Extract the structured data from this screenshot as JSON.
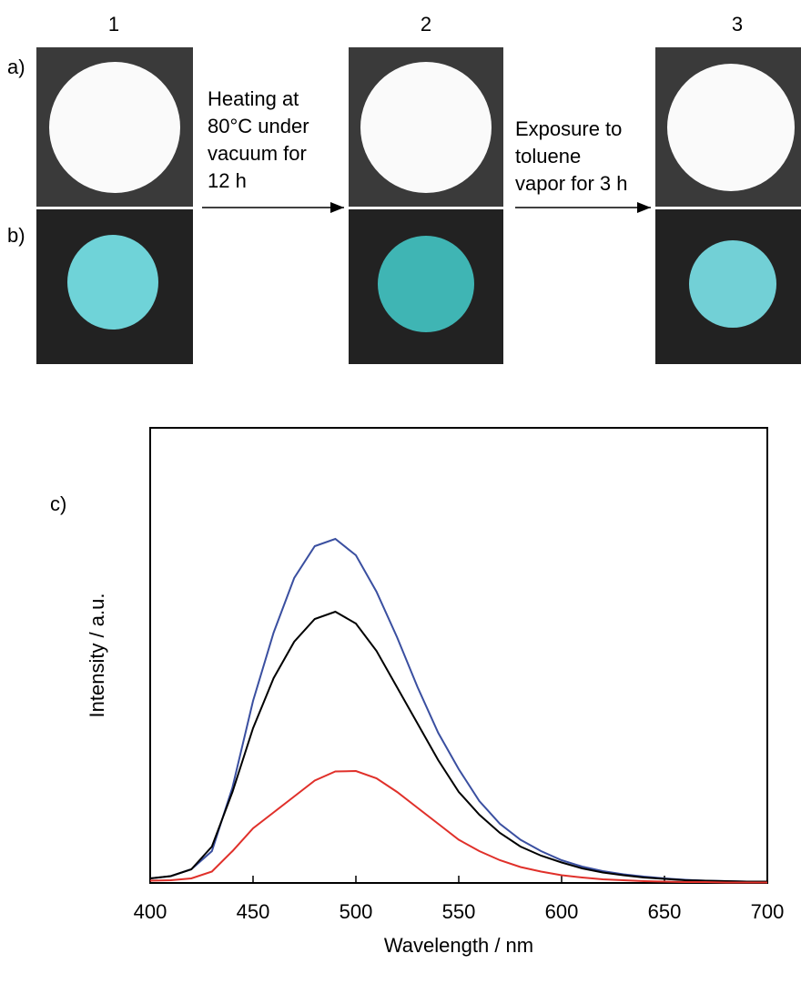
{
  "panel_numbers": [
    "1",
    "2",
    "3"
  ],
  "row_labels": [
    "a)",
    "b)"
  ],
  "steps": [
    {
      "lines": [
        "Heating at",
        "80°C under",
        "vacuum for",
        "12 h"
      ]
    },
    {
      "lines": [
        "Exposure to",
        "toluene",
        "vapor for 3 h"
      ]
    }
  ],
  "chart_data": {
    "type": "line",
    "panel_label": "c)",
    "x_label": "Wavelength / nm",
    "y_label": "Intensity / a.u.",
    "xlim": [
      400,
      700
    ],
    "xticks": [
      400,
      450,
      500,
      550,
      600,
      650,
      700
    ],
    "ylim": [
      0,
      100
    ],
    "x": [
      400,
      410,
      420,
      430,
      440,
      450,
      460,
      470,
      480,
      490,
      500,
      510,
      520,
      530,
      540,
      550,
      560,
      570,
      580,
      590,
      600,
      610,
      620,
      630,
      640,
      650,
      660,
      670,
      680,
      690,
      700
    ],
    "series": [
      {
        "color": "#3a4fa0",
        "values": [
          1,
          1.5,
          3,
          7,
          21,
          40,
          55,
          67,
          74,
          75.6,
          72,
          64,
          54,
          43,
          33,
          25,
          18,
          13,
          9.5,
          7,
          5,
          3.6,
          2.6,
          1.9,
          1.4,
          1,
          0.7,
          0.5,
          0.4,
          0.3,
          0.3
        ]
      },
      {
        "color": "#000000",
        "values": [
          1,
          1.5,
          3,
          8,
          20,
          34,
          45,
          53,
          58,
          59.6,
          57,
          51,
          43,
          35,
          27,
          20,
          15,
          11,
          8,
          6,
          4.5,
          3.2,
          2.3,
          1.7,
          1.2,
          0.9,
          0.6,
          0.5,
          0.4,
          0.3,
          0.3
        ]
      },
      {
        "color": "#e0302a",
        "values": [
          0.5,
          0.6,
          1,
          2.5,
          7,
          12,
          15.5,
          19,
          22.5,
          24.5,
          24.6,
          23,
          20,
          16.5,
          13,
          9.5,
          7,
          5,
          3.5,
          2.5,
          1.7,
          1.2,
          0.8,
          0.6,
          0.4,
          0.3,
          0.2,
          0.2,
          0.1,
          0.1,
          0.1
        ]
      }
    ]
  }
}
